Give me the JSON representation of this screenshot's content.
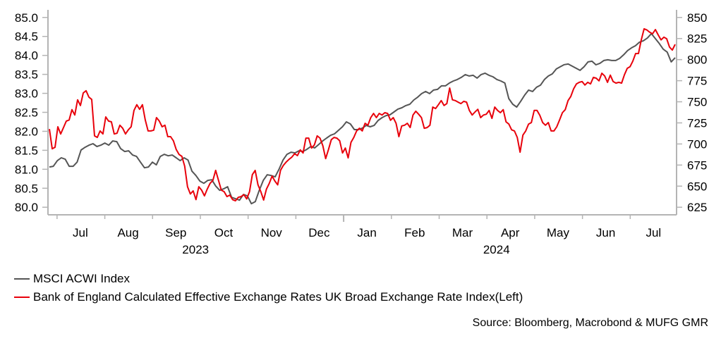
{
  "chart_data": {
    "type": "line",
    "title": "",
    "xlabel": "",
    "x_unit": "months since Jul 2023",
    "x_range": [
      -0.19,
      12.97
    ],
    "x_ticks": [
      {
        "label": "Jul",
        "month": 0
      },
      {
        "label": "Aug",
        "month": 1
      },
      {
        "label": "Sep",
        "month": 2
      },
      {
        "label": "Oct",
        "month": 3
      },
      {
        "label": "Nov",
        "month": 4
      },
      {
        "label": "Dec",
        "month": 5
      },
      {
        "label": "Jan",
        "month": 6
      },
      {
        "label": "Feb",
        "month": 7
      },
      {
        "label": "Mar",
        "month": 8
      },
      {
        "label": "Apr",
        "month": 9
      },
      {
        "label": "May",
        "month": 10
      },
      {
        "label": "Jun",
        "month": 11
      },
      {
        "label": "Jul",
        "month": 12
      }
    ],
    "year_labels": [
      {
        "label": "2023",
        "center_month": 2.9
      },
      {
        "label": "2024",
        "center_month": 9.2
      }
    ],
    "year_boundary_month": 6,
    "y_left": {
      "range": [
        79.8,
        85.2
      ],
      "ticks": [
        "85.0",
        "84.5",
        "84.0",
        "83.5",
        "83.0",
        "82.5",
        "82.0",
        "81.5",
        "81.0",
        "80.5",
        "80.0"
      ],
      "tick_values": [
        85.0,
        84.5,
        84.0,
        83.5,
        83.0,
        82.5,
        82.0,
        81.5,
        81.0,
        80.5,
        80.0
      ]
    },
    "y_right": {
      "range": [
        616,
        859
      ],
      "ticks": [
        "850",
        "825",
        "800",
        "775",
        "750",
        "725",
        "700",
        "675",
        "650",
        "625"
      ],
      "tick_values": [
        850,
        825,
        800,
        775,
        750,
        725,
        700,
        675,
        650,
        625
      ]
    },
    "grid": false,
    "legend_position": "bottom-left",
    "series": [
      {
        "name": "MSCI ACWI Index",
        "axis": "right",
        "color": "#555555",
        "x_start": -0.16,
        "x_end": 12.94,
        "values": [
          672.7,
          673.5,
          680.2,
          683.6,
          681.9,
          673.5,
          673.5,
          678.5,
          692.8,
          696.1,
          698.6,
          700.3,
          697.0,
          698.6,
          701.1,
          698.6,
          703.6,
          702.8,
          694.4,
          691.1,
          691.9,
          686.9,
          685.2,
          678.5,
          671.8,
          672.7,
          678.5,
          675.2,
          685.2,
          687.7,
          686.0,
          686.9,
          683.6,
          680.2,
          683.6,
          681.0,
          667.7,
          662.6,
          656.0,
          653.4,
          656.8,
          657.6,
          650.1,
          645.1,
          646.8,
          649.3,
          636.7,
          635.0,
          633.4,
          640.1,
          638.4,
          629.2,
          631.7,
          645.1,
          656.8,
          663.5,
          662.6,
          661.0,
          670.2,
          681.0,
          687.7,
          690.2,
          689.4,
          691.9,
          691.1,
          693.6,
          697.0,
          695.3,
          699.4,
          703.6,
          707.0,
          710.3,
          712.0,
          716.2,
          720.4,
          726.2,
          723.7,
          717.0,
          717.0,
          718.7,
          722.0,
          720.4,
          722.0,
          727.9,
          731.2,
          733.7,
          734.6,
          737.9,
          741.3,
          742.9,
          745.5,
          747.1,
          752.1,
          755.5,
          759.7,
          762.2,
          759.7,
          763.9,
          764.7,
          768.9,
          768.9,
          772.2,
          774.7,
          776.4,
          778.9,
          782.3,
          780.6,
          781.4,
          778.1,
          782.3,
          783.9,
          781.4,
          779.7,
          776.4,
          774.7,
          772.2,
          753.8,
          747.1,
          743.8,
          750.5,
          758.0,
          763.9,
          762.2,
          767.2,
          769.7,
          776.4,
          780.6,
          783.1,
          788.9,
          791.5,
          794.0,
          794.8,
          792.3,
          789.8,
          787.3,
          791.5,
          797.3,
          798.1,
          793.9,
          795.6,
          799.0,
          799.8,
          799.0,
          799.0,
          801.5,
          805.7,
          810.7,
          814.0,
          816.5,
          820.7,
          822.4,
          825.7,
          830.8,
          824.9,
          819.1,
          812.4,
          809.0,
          797.3,
          802.3
        ]
      },
      {
        "name": "Bank of England Calculated Effective Exchange Rates UK Broad Exchange Rate Index(Left)",
        "axis": "left",
        "color": "#e8000b",
        "x_start": -0.16,
        "x_end": 12.94,
        "values": [
          82.06,
          81.54,
          81.58,
          82.12,
          81.93,
          82.1,
          82.27,
          82.3,
          82.57,
          82.43,
          82.83,
          82.68,
          83.01,
          83.07,
          82.9,
          82.84,
          81.88,
          81.84,
          82.01,
          81.93,
          82.38,
          82.27,
          82.25,
          81.93,
          81.95,
          82.16,
          82.08,
          81.93,
          82.04,
          82.12,
          82.55,
          82.7,
          82.58,
          82.7,
          82.3,
          82.01,
          82.01,
          82.03,
          82.36,
          82.27,
          82.12,
          82.16,
          81.86,
          81.86,
          81.75,
          81.52,
          81.39,
          81.34,
          81.08,
          80.54,
          80.35,
          80.43,
          80.2,
          80.54,
          80.45,
          80.3,
          80.48,
          80.63,
          80.71,
          80.97,
          80.71,
          80.45,
          80.41,
          80.28,
          80.32,
          80.2,
          80.17,
          80.26,
          80.28,
          80.33,
          80.22,
          80.41,
          80.86,
          80.97,
          80.59,
          80.41,
          80.19,
          80.48,
          80.63,
          80.82,
          80.69,
          80.59,
          80.97,
          81.1,
          81.19,
          81.26,
          81.32,
          81.41,
          81.36,
          81.51,
          81.43,
          81.82,
          81.82,
          81.56,
          81.64,
          81.88,
          81.82,
          81.62,
          81.28,
          81.52,
          81.78,
          81.84,
          81.82,
          81.75,
          81.43,
          81.56,
          81.3,
          81.71,
          81.84,
          82.01,
          82.08,
          82.01,
          82.21,
          82.16,
          82.36,
          82.47,
          82.36,
          82.47,
          82.43,
          82.49,
          82.47,
          82.29,
          82.36,
          82.21,
          81.86,
          82.14,
          82.16,
          82.21,
          82.1,
          82.43,
          82.53,
          82.45,
          82.36,
          82.08,
          82.1,
          82.16,
          82.64,
          82.6,
          82.7,
          82.81,
          82.68,
          82.73,
          83.14,
          82.83,
          82.81,
          82.77,
          82.73,
          82.79,
          82.77,
          82.55,
          82.43,
          82.51,
          82.58,
          82.36,
          82.43,
          82.45,
          82.55,
          82.34,
          82.64,
          82.55,
          82.49,
          82.57,
          82.25,
          82.19,
          82.04,
          82.01,
          81.84,
          81.45,
          81.9,
          82.01,
          82.19,
          82.23,
          82.55,
          82.55,
          82.42,
          82.23,
          82.16,
          82.23,
          82.01,
          82.01,
          82.12,
          82.3,
          82.49,
          82.57,
          82.81,
          82.92,
          83.12,
          83.25,
          83.29,
          83.31,
          83.22,
          83.29,
          83.25,
          83.42,
          83.4,
          83.33,
          83.53,
          83.46,
          83.29,
          83.48,
          83.31,
          83.27,
          83.29,
          83.27,
          83.49,
          83.66,
          83.7,
          83.85,
          84.05,
          84.05,
          84.41,
          84.7,
          84.67,
          84.61,
          84.57,
          84.68,
          84.54,
          84.41,
          84.48,
          84.44,
          84.22,
          84.14,
          84.29
        ]
      }
    ]
  },
  "legend": {
    "items": [
      {
        "label": "MSCI ACWI Index",
        "color": "#555555"
      },
      {
        "label": "Bank of England Calculated Effective Exchange Rates UK Broad Exchange Rate Index(Left)",
        "color": "#e8000b"
      }
    ]
  },
  "source": "Source: Bloomberg, Macrobond & MUFG GMR"
}
